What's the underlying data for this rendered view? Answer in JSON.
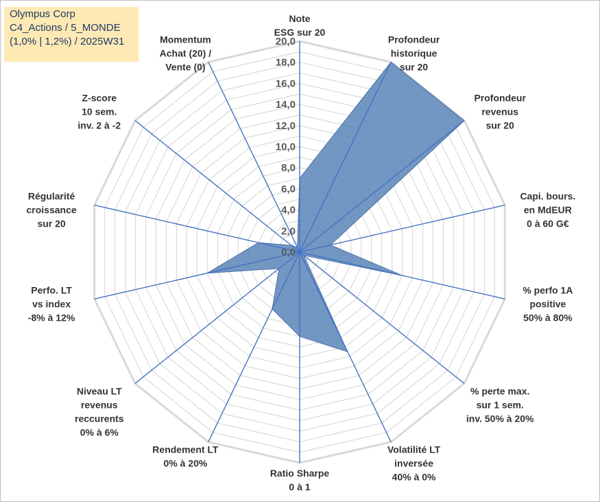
{
  "header": {
    "line1": "Olympus Corp",
    "line2": "C4_Actions / 5_MONDE",
    "line3": "(1,0% | 1,2%) / 2025W31"
  },
  "chart_data": {
    "type": "radar",
    "rmax": 20,
    "ticks": [
      "0,0",
      "2,0",
      "4,0",
      "6,0",
      "8,0",
      "10,0",
      "12,0",
      "14,0",
      "16,0",
      "18,0",
      "20,0"
    ],
    "grid_step": 1,
    "grid": true,
    "axes": [
      {
        "label": [
          "Note",
          "ESG sur 20"
        ],
        "value": 7.0
      },
      {
        "label": [
          "Profondeur",
          "historique",
          "sur 20"
        ],
        "value": 20.0
      },
      {
        "label": [
          "Profondeur",
          "revenus",
          "sur 20"
        ],
        "value": 20.0
      },
      {
        "label": [
          "Capi. bours.",
          "en MdEUR",
          "0 à 60 G€"
        ],
        "value": 3.0
      },
      {
        "label": [
          "% perfo 1A",
          "positive",
          "50% à 80%"
        ],
        "value": 10.0
      },
      {
        "label": [
          "% perte max.",
          "sur 1 sem.",
          "inv. 50% à 20%"
        ],
        "value": 0.5
      },
      {
        "label": [
          "Volatilité LT",
          "inversée",
          "40% à 0%"
        ],
        "value": 10.5
      },
      {
        "label": [
          "Ratio Sharpe",
          "0 à 1"
        ],
        "value": 8.0
      },
      {
        "label": [
          "Rendement LT",
          "0% à 20%"
        ],
        "value": 6.0
      },
      {
        "label": [
          "Niveau LT",
          "revenus",
          "reccurents",
          "0% à 6%"
        ],
        "value": 2.5
      },
      {
        "label": [
          "Perfo. LT",
          "vs index",
          "-8% à 12%"
        ],
        "value": 9.0
      },
      {
        "label": [
          "Régularité",
          "croissance",
          "sur 20"
        ],
        "value": 4.0
      },
      {
        "label": [
          "Z-score",
          "10 sem.",
          "inv. 2 à -2"
        ],
        "value": 1.0
      },
      {
        "label": [
          "Momentum",
          "Achat (20) /",
          "Vente (0)"
        ],
        "value": 0.5
      }
    ],
    "colors": {
      "grid": "#d9d9d9",
      "spokes": "#4472c4",
      "fill": "#5b85b8",
      "stroke": "#4a72a8"
    }
  }
}
